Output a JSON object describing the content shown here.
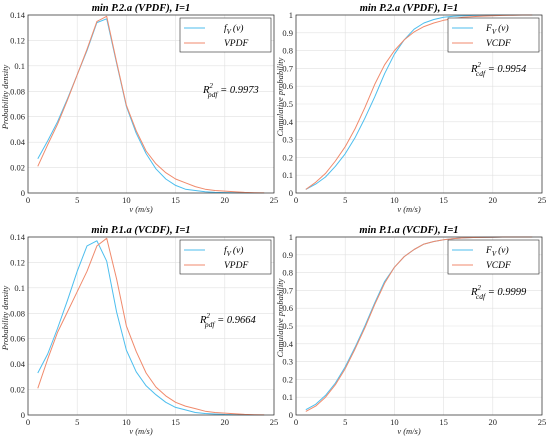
{
  "colors": {
    "series1": "#4DBEEE",
    "series2": "#F08A6C",
    "axis": "#262626",
    "grid": "#E1E1E1"
  },
  "chart_data": [
    {
      "type": "line",
      "title": "min P.2.a (VPDF), I=1",
      "xlabel": "v (m/s)",
      "ylabel": "Probability density",
      "xlim": [
        0,
        25
      ],
      "ylim": [
        0,
        0.14
      ],
      "xticks": [
        "0",
        "5",
        "10",
        "15",
        "20",
        "25"
      ],
      "yticks": [
        "0",
        "0.02",
        "0.04",
        "0.06",
        "0.08",
        "0.1",
        "0.12",
        "0.14"
      ],
      "grid": true,
      "legend_position": "top-right",
      "legend": [
        "f",
        "V",
        "(v)",
        "VPDF"
      ],
      "r2": {
        "base": "R",
        "sup": "2",
        "sub": "pdf",
        "value": " = 0.9973"
      },
      "series": [
        {
          "x": [
            1,
            2,
            3,
            4,
            5,
            6,
            7,
            8,
            9,
            10,
            11,
            12,
            13,
            14,
            15,
            16,
            17,
            18,
            19,
            20,
            21,
            22,
            23,
            24
          ],
          "values": [
            0.027,
            0.041,
            0.056,
            0.074,
            0.093,
            0.112,
            0.134,
            0.137,
            0.102,
            0.068,
            0.047,
            0.031,
            0.019,
            0.011,
            0.006,
            0.003,
            0.002,
            0.001,
            0.0005,
            0.0003,
            0.0002,
            0.0001,
            0,
            0
          ]
        },
        {
          "x": [
            1,
            2,
            3,
            4,
            5,
            6,
            7,
            8,
            9,
            10,
            11,
            12,
            13,
            14,
            15,
            16,
            17,
            18,
            19,
            20,
            21,
            22,
            23,
            24
          ],
          "values": [
            0.021,
            0.038,
            0.054,
            0.073,
            0.093,
            0.113,
            0.135,
            0.139,
            0.103,
            0.069,
            0.049,
            0.033,
            0.023,
            0.016,
            0.011,
            0.008,
            0.005,
            0.003,
            0.002,
            0.0015,
            0.001,
            0.0005,
            0.0002,
            0.0001
          ]
        }
      ]
    },
    {
      "type": "line",
      "title": "min P.2.a (VPDF), I=1",
      "xlabel": "v (m/s)",
      "ylabel": "Cumulative probability",
      "xlim": [
        0,
        25
      ],
      "ylim": [
        0,
        1
      ],
      "xticks": [
        "0",
        "5",
        "10",
        "15",
        "20",
        "25"
      ],
      "yticks": [
        "0",
        "0.1",
        "0.2",
        "0.3",
        "0.4",
        "0.5",
        "0.6",
        "0.7",
        "0.8",
        "0.9",
        "1"
      ],
      "grid": true,
      "legend_position": "top-right",
      "legend": [
        "F",
        "V",
        "(v)",
        "VCDF"
      ],
      "r2": {
        "base": "R",
        "sup": "2",
        "sub": "cdf",
        "value": " = 0.9954"
      },
      "series": [
        {
          "x": [
            1,
            2,
            3,
            4,
            5,
            6,
            7,
            8,
            9,
            10,
            11,
            12,
            13,
            14,
            15,
            16,
            17,
            18,
            19,
            20,
            21,
            22,
            23,
            24
          ],
          "values": [
            0.02,
            0.05,
            0.09,
            0.15,
            0.22,
            0.31,
            0.42,
            0.54,
            0.67,
            0.78,
            0.86,
            0.92,
            0.955,
            0.975,
            0.987,
            0.993,
            0.996,
            0.998,
            0.999,
            1,
            1,
            1,
            1,
            1
          ]
        },
        {
          "x": [
            1,
            2,
            3,
            4,
            5,
            6,
            7,
            8,
            9,
            10,
            11,
            12,
            13,
            14,
            15,
            16,
            17,
            18,
            19,
            20,
            21,
            22,
            23,
            24
          ],
          "values": [
            0.02,
            0.06,
            0.11,
            0.18,
            0.26,
            0.36,
            0.48,
            0.61,
            0.72,
            0.8,
            0.86,
            0.905,
            0.935,
            0.955,
            0.97,
            0.98,
            0.987,
            0.991,
            0.994,
            0.996,
            0.998,
            0.999,
            1,
            1
          ]
        }
      ]
    },
    {
      "type": "line",
      "title": "min P.1.a (VCDF), I=1",
      "xlabel": "v (m/s)",
      "ylabel": "Probability density",
      "xlim": [
        0,
        25
      ],
      "ylim": [
        0,
        0.14
      ],
      "xticks": [
        "0",
        "5",
        "10",
        "15",
        "20",
        "25"
      ],
      "yticks": [
        "0",
        "0.02",
        "0.04",
        "0.06",
        "0.08",
        "0.1",
        "0.12",
        "0.14"
      ],
      "grid": true,
      "legend_position": "top-right",
      "legend": [
        "f",
        "V",
        "(v)",
        "VPDF"
      ],
      "r2": {
        "base": "R",
        "sup": "2",
        "sub": "pdf",
        "value": " = 0.9664"
      },
      "series": [
        {
          "x": [
            1,
            2,
            3,
            4,
            5,
            6,
            7,
            8,
            9,
            10,
            11,
            12,
            13,
            14,
            15,
            16,
            17,
            18,
            19,
            20,
            21,
            22,
            23,
            24
          ],
          "values": [
            0.033,
            0.048,
            0.068,
            0.09,
            0.113,
            0.133,
            0.137,
            0.121,
            0.081,
            0.051,
            0.034,
            0.023,
            0.016,
            0.01,
            0.006,
            0.004,
            0.002,
            0.0012,
            0.0008,
            0.0004,
            0.0002,
            0.0001,
            0,
            0
          ]
        },
        {
          "x": [
            1,
            2,
            3,
            4,
            5,
            6,
            7,
            8,
            9,
            10,
            11,
            12,
            13,
            14,
            15,
            16,
            17,
            18,
            19,
            20,
            21,
            22,
            23,
            24
          ],
          "values": [
            0.021,
            0.044,
            0.065,
            0.081,
            0.097,
            0.113,
            0.133,
            0.139,
            0.107,
            0.07,
            0.05,
            0.033,
            0.022,
            0.015,
            0.01,
            0.007,
            0.005,
            0.003,
            0.002,
            0.0015,
            0.001,
            0.0005,
            0.0002,
            0.0001
          ]
        }
      ]
    },
    {
      "type": "line",
      "title": "min P.1.a (VCDF), I=1",
      "xlabel": "v (m/s)",
      "ylabel": "Cumulative probability",
      "xlim": [
        0,
        25
      ],
      "ylim": [
        0,
        1
      ],
      "xticks": [
        "0",
        "5",
        "10",
        "15",
        "20",
        "25"
      ],
      "yticks": [
        "0",
        "0.1",
        "0.2",
        "0.3",
        "0.4",
        "0.5",
        "0.6",
        "0.7",
        "0.8",
        "0.9",
        "1"
      ],
      "grid": true,
      "legend_position": "top-right",
      "legend": [
        "F",
        "V",
        "(v)",
        "VCDF"
      ],
      "r2": {
        "base": "R",
        "sup": "2",
        "sub": "cdf",
        "value": " = 0.9999"
      },
      "series": [
        {
          "x": [
            1,
            2,
            3,
            4,
            5,
            6,
            7,
            8,
            9,
            10,
            11,
            12,
            13,
            14,
            15,
            16,
            17,
            18,
            19,
            20,
            21,
            22,
            23,
            24
          ],
          "values": [
            0.03,
            0.06,
            0.11,
            0.18,
            0.27,
            0.38,
            0.5,
            0.63,
            0.75,
            0.83,
            0.89,
            0.93,
            0.96,
            0.975,
            0.985,
            0.991,
            0.995,
            0.997,
            0.998,
            0.999,
            1,
            1,
            1,
            1
          ]
        },
        {
          "x": [
            1,
            2,
            3,
            4,
            5,
            6,
            7,
            8,
            9,
            10,
            11,
            12,
            13,
            14,
            15,
            16,
            17,
            18,
            19,
            20,
            21,
            22,
            23,
            24
          ],
          "values": [
            0.02,
            0.05,
            0.1,
            0.17,
            0.26,
            0.37,
            0.49,
            0.62,
            0.74,
            0.83,
            0.89,
            0.93,
            0.96,
            0.975,
            0.985,
            0.991,
            0.995,
            0.997,
            0.998,
            0.999,
            1,
            1,
            1,
            1
          ]
        }
      ]
    }
  ]
}
